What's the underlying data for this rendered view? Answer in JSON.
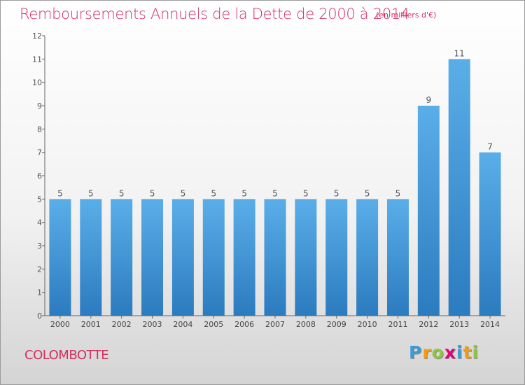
{
  "title": "Remboursements Annuels de la Dette de 2000 à 2014",
  "subtitle": "(en milliers d'€)",
  "commune": "COLOMBOTTE",
  "logo": {
    "letters": [
      "P",
      "r",
      "o",
      "x",
      "i",
      "t",
      "i"
    ],
    "colors": [
      "#3a9bd5",
      "#f39c12",
      "#8dc63f",
      "#e2007a",
      "#3a9bd5",
      "#f39c12",
      "#8dc63f"
    ]
  },
  "colors": {
    "accent": "#d32f5f",
    "bar_top": "#5aaee8",
    "bar_bottom": "#2b7bbf"
  },
  "chart_data": {
    "type": "bar",
    "categories": [
      "2000",
      "2001",
      "2002",
      "2003",
      "2004",
      "2005",
      "2006",
      "2007",
      "2008",
      "2009",
      "2010",
      "2011",
      "2012",
      "2013",
      "2014"
    ],
    "values": [
      5,
      5,
      5,
      5,
      5,
      5,
      5,
      5,
      5,
      5,
      5,
      5,
      9,
      11,
      7
    ],
    "data_labels": [
      "5",
      "5",
      "5",
      "5",
      "5",
      "5",
      "5",
      "5",
      "5",
      "5",
      "5",
      "5",
      "9",
      "11",
      "7"
    ],
    "y_ticks": [
      "0",
      "1",
      "2",
      "3",
      "4",
      "5",
      "6",
      "7",
      "8",
      "9",
      "10",
      "11",
      "12"
    ],
    "ylim": [
      0,
      12
    ],
    "grid": false,
    "legend": "none"
  }
}
